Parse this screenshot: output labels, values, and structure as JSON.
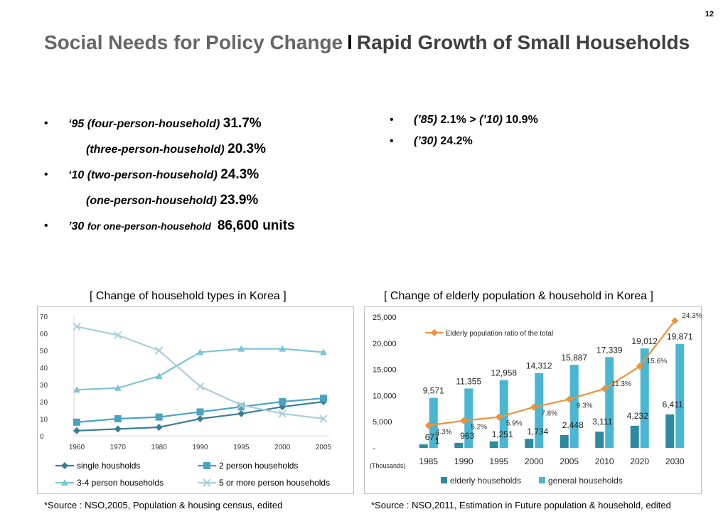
{
  "page_number": "12",
  "title": {
    "main": "Social Needs for Policy Change",
    "separator": "l",
    "sub": "Rapid Growth of Small Households"
  },
  "bullets_left": [
    {
      "label": "‘95 (four-person-household)",
      "value": "31.7%"
    },
    {
      "label": "(three-person-household)",
      "value": "20.3%"
    },
    {
      "label": "‘10 (two-person-household)",
      "value": "24.3%"
    },
    {
      "label": "(one-person-household)",
      "value": "23.9%"
    },
    {
      "label_a": "’30",
      "label_b": "for one-person-household",
      "value": "86,600 units"
    }
  ],
  "bullets_right": [
    {
      "label_a": "(’85)",
      "value_a": "2.1%  > ",
      "label_b": "(’10)",
      "value_b": "10.9%"
    },
    {
      "label": "(’30)",
      "value": "24.2%"
    }
  ],
  "chart_data": [
    {
      "type": "line",
      "title": "[ Change of household types in Korea ]",
      "categories": [
        "1960",
        "1970",
        "1980",
        "1990",
        "1995",
        "2000",
        "2005"
      ],
      "ylim": [
        0,
        70
      ],
      "yticks": [
        "0",
        "10",
        "20",
        "30",
        "40",
        "50",
        "60",
        "70"
      ],
      "grid": false,
      "legend_position": "bottom",
      "series": [
        {
          "name": "single housholds",
          "marker": "diamond",
          "color": "#3b7f96",
          "values": [
            3,
            4,
            5,
            10,
            13,
            17,
            20
          ]
        },
        {
          "name": "2 person households",
          "marker": "square",
          "color": "#4aa3bf",
          "values": [
            8,
            10,
            11,
            14,
            17,
            20,
            22
          ]
        },
        {
          "name": "3-4 person households",
          "marker": "triangle",
          "color": "#7cc4d6",
          "values": [
            27,
            28,
            35,
            49,
            51,
            51,
            49
          ]
        },
        {
          "name": "5 or more person households",
          "marker": "x",
          "color": "#a9cfdc",
          "values": [
            64,
            59,
            50,
            29,
            18,
            13,
            10
          ]
        }
      ]
    },
    {
      "type": "bar",
      "title": "[ Change of elderly population & household in Korea ]",
      "unit_label": "(Thousands)",
      "categories": [
        "1985",
        "1990",
        "1995",
        "2000",
        "2005",
        "2010",
        "2020",
        "2030"
      ],
      "ylim": [
        0,
        25000
      ],
      "yticks": [
        "-",
        "5,000",
        "10,000",
        "15,000",
        "20,000",
        "25,000"
      ],
      "legend_position": "bottom",
      "series": [
        {
          "name": "elderly households",
          "color": "#2e8aa0",
          "values": [
            677,
            963,
            1251,
            1734,
            2448,
            3111,
            4232,
            6411
          ],
          "labels": [
            "677",
            "963",
            "1,251",
            "1,734",
            "2,448",
            "3,111",
            "4,232",
            "6,411"
          ]
        },
        {
          "name": "general households",
          "color": "#4ab6d2",
          "values": [
            9571,
            11355,
            12958,
            14312,
            15887,
            17339,
            19012,
            19871
          ],
          "labels": [
            "9,571",
            "11,355",
            "12,958",
            "14,312",
            "15,887",
            "17,339",
            "19,012",
            "19,871"
          ]
        }
      ],
      "line_series": {
        "name": "Elderly population ratio of the total",
        "color": "#f0913a",
        "values": [
          4.3,
          5.2,
          5.9,
          7.8,
          9.3,
          11.3,
          15.6,
          24.3
        ],
        "labels": [
          "4.3%",
          "5.2%",
          "5.9%",
          "7.8%",
          "9.3%",
          "11.3%",
          "15.6%",
          "24.3%"
        ]
      },
      "extra_labels": [
        "1"
      ]
    }
  ],
  "source_left": "*Source : NSO,2005, Population & housing census, edited",
  "source_right": "*Source : NSO,2011, Estimation in Future population & household, edited"
}
